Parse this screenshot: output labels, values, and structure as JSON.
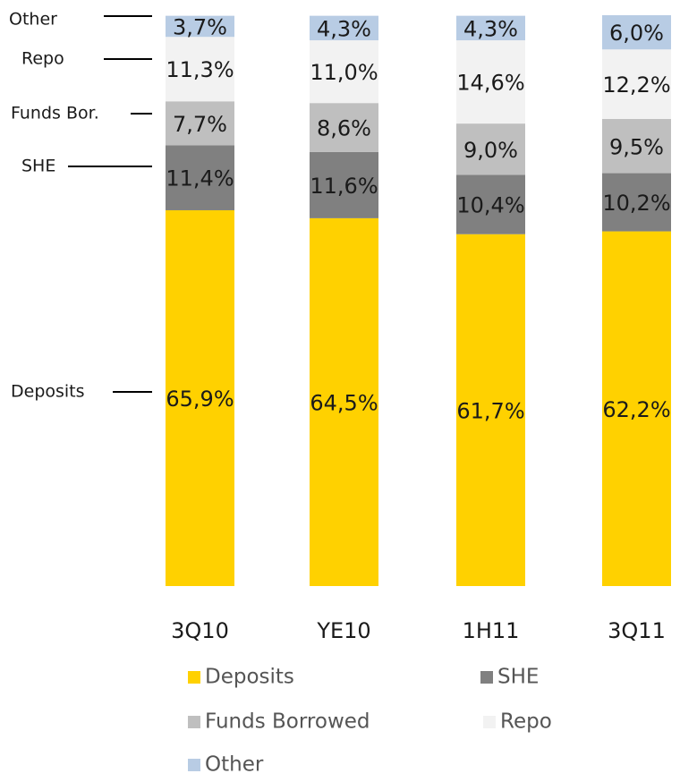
{
  "chart_data": {
    "type": "stacked_bar",
    "categories": [
      "3Q10",
      "YE10",
      "1H11",
      "3Q11"
    ],
    "series": [
      {
        "name": "Deposits",
        "color": "#FFD100",
        "values": [
          65.9,
          64.5,
          61.7,
          62.2
        ],
        "value_labels": [
          "65,9%",
          "64,5%",
          "61,7%",
          "62,2%"
        ]
      },
      {
        "name": "SHE",
        "color": "#808080",
        "values": [
          11.4,
          11.6,
          10.4,
          10.2
        ],
        "value_labels": [
          "11,4%",
          "11,6%",
          "10,4%",
          "10,2%"
        ]
      },
      {
        "name": "Funds Borrowed",
        "color": "#BFBFBF",
        "values": [
          7.7,
          8.6,
          9.0,
          9.5
        ],
        "value_labels": [
          "7,7%",
          "8,6%",
          "9,0%",
          "9,5%"
        ]
      },
      {
        "name": "Repo",
        "color": "#F2F2F2",
        "values": [
          11.3,
          11.0,
          14.6,
          12.2
        ],
        "value_labels": [
          "11,3%",
          "11,0%",
          "14,6%",
          "12,2%"
        ]
      },
      {
        "name": "Other",
        "color": "#B8CCE4",
        "values": [
          3.7,
          4.3,
          4.3,
          6.0
        ],
        "value_labels": [
          "3,7%",
          "4,3%",
          "4,3%",
          "6,0%"
        ]
      }
    ],
    "annotations": [
      "Other",
      "Repo",
      "Funds Bor.",
      "SHE",
      "Deposits"
    ],
    "legend": true
  }
}
